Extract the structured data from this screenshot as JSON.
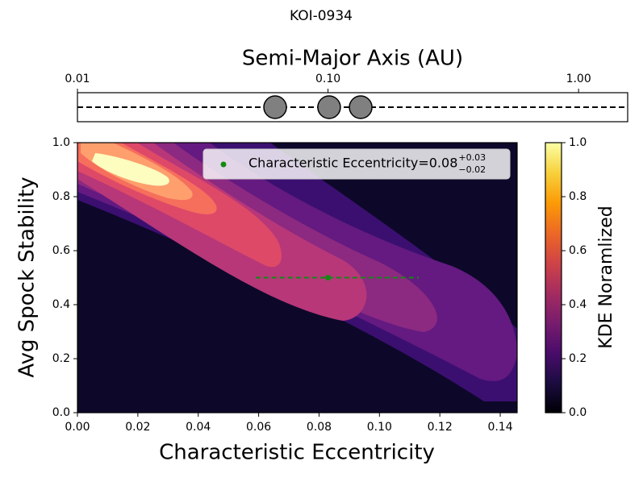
{
  "title": "KOI-0934",
  "chart_data": [
    {
      "type": "strip",
      "title": "Semi-Major Axis (AU)",
      "log_scale": true,
      "xlim": [
        0.01,
        1.57
      ],
      "xticks": [
        0.01,
        {
          "value": 0.1,
          "label": "0.10"
        },
        {
          "value": 1,
          "label": "1.00"
        }
      ],
      "x": [
        0.0615,
        0.101,
        0.135
      ],
      "color": "#808080"
    },
    {
      "type": "contour",
      "xlabel": "Characteristic Eccentricity",
      "ylabel": "Avg Spock Stability",
      "xlim": [
        0,
        0.1456
      ],
      "ylim": [
        0,
        1
      ],
      "xticks": [
        {
          "value": 0,
          "label": "0.00"
        },
        0.02,
        0.04,
        0.06,
        0.08,
        {
          "value": 0.1,
          "label": "0.10"
        },
        0.12,
        0.14
      ],
      "yticks": [
        {
          "value": 0,
          "label": "0.0"
        },
        0.2,
        0.4,
        0.6,
        0.8,
        {
          "value": 1,
          "label": "1.0"
        }
      ],
      "levels": [
        0.0,
        0.1,
        0.2,
        0.3,
        0.4,
        0.5,
        0.6,
        0.7,
        0.8
      ],
      "level_colors": [
        "#0d0829",
        "#3b0f70",
        "#641a80",
        "#8c2981",
        "#b73779",
        "#de4968",
        "#f66e5c",
        "#fe9f6d",
        "#fcfdbf"
      ],
      "series": [
        {
          "name": "Characteristic Eccentricity=0.08",
          "name_upper": "+0.03",
          "name_lower": "−0.02",
          "color": "#138a13",
          "x": [
            0.083
          ],
          "values": [
            0.5
          ],
          "xerr_minus": [
            0.024
          ],
          "xerr_plus": [
            0.03
          ]
        }
      ]
    },
    {
      "type": "colorbar",
      "label": "KDE Noramlized",
      "ylim": [
        0,
        1
      ],
      "yticks": [
        {
          "value": 0,
          "label": "0.0"
        },
        0.2,
        0.4,
        0.6,
        0.8,
        {
          "value": 1,
          "label": "1.0"
        }
      ],
      "colormap": [
        "#000004",
        "#1b0c41",
        "#4a0c6b",
        "#781c6d",
        "#a52c60",
        "#cf4446",
        "#ed6925",
        "#fb9b06",
        "#f7d13d",
        "#fcffa4"
      ]
    }
  ]
}
